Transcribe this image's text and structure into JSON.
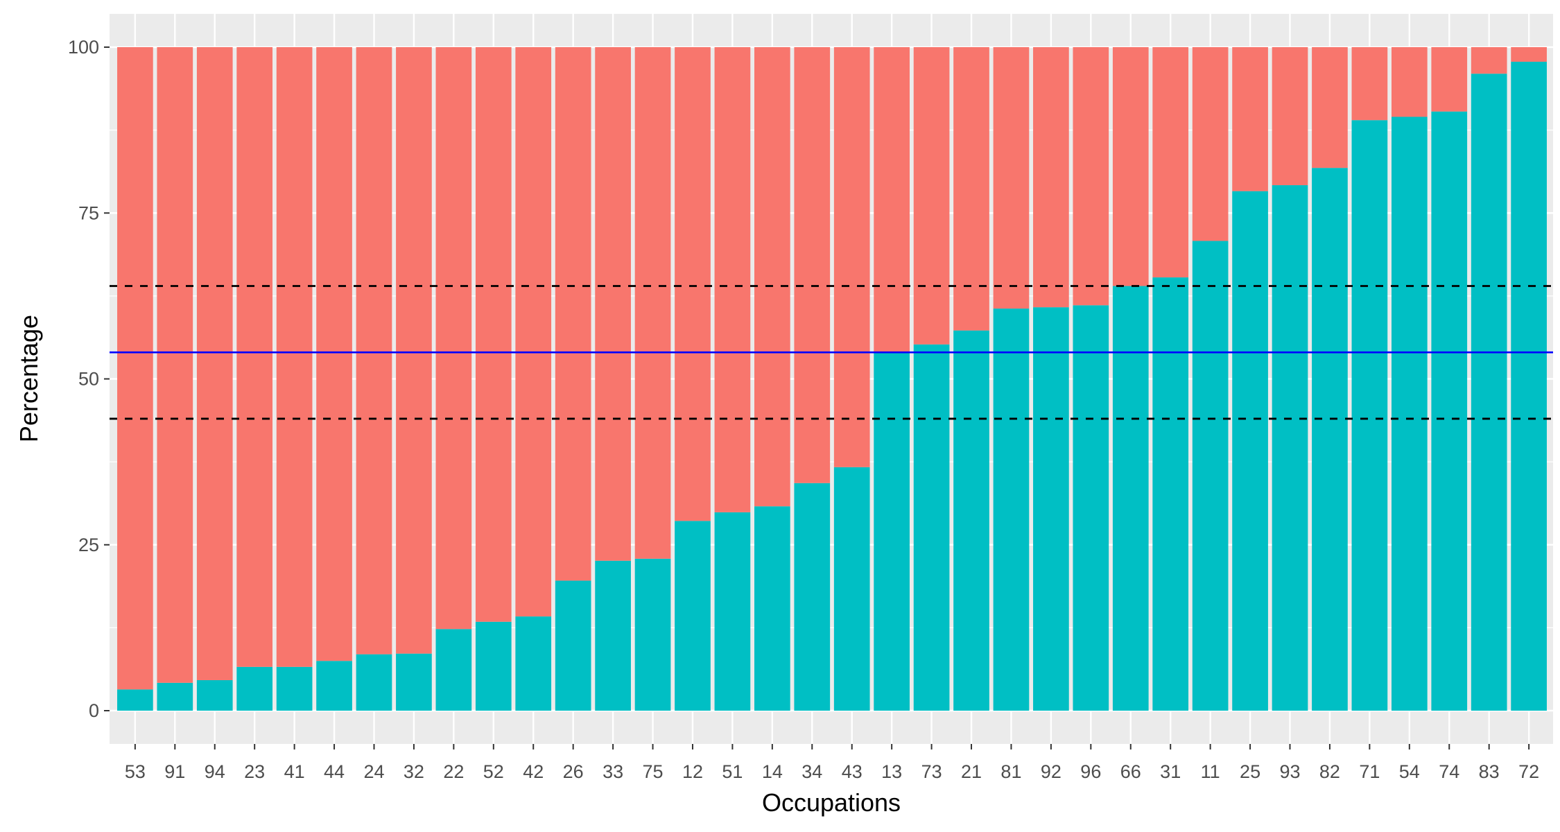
{
  "chart_data": {
    "type": "bar",
    "stacked": true,
    "xlabel": "Occupations",
    "ylabel": "Percentage",
    "ylim": [
      0,
      100
    ],
    "yticks": [
      0,
      25,
      50,
      75,
      100
    ],
    "grid": true,
    "legend": "none",
    "categories": [
      "53",
      "91",
      "94",
      "23",
      "41",
      "44",
      "24",
      "32",
      "22",
      "52",
      "42",
      "26",
      "33",
      "75",
      "12",
      "51",
      "14",
      "34",
      "43",
      "13",
      "73",
      "21",
      "81",
      "92",
      "96",
      "66",
      "31",
      "11",
      "25",
      "93",
      "82",
      "71",
      "54",
      "74",
      "83",
      "72"
    ],
    "series": [
      {
        "color": "#00BFC4",
        "values": [
          3.2,
          4.2,
          4.6,
          6.6,
          6.6,
          7.5,
          8.5,
          8.6,
          12.3,
          13.4,
          14.2,
          19.6,
          22.6,
          22.9,
          28.6,
          29.9,
          30.8,
          34.3,
          36.7,
          54.0,
          55.2,
          57.3,
          60.6,
          60.8,
          61.1,
          64.0,
          65.3,
          70.8,
          78.3,
          79.2,
          81.8,
          89.0,
          89.5,
          90.3,
          96.0,
          97.8
        ]
      },
      {
        "color": "#F8766D",
        "values": [
          96.8,
          95.8,
          95.4,
          93.4,
          93.4,
          92.5,
          91.5,
          91.4,
          87.7,
          86.6,
          85.8,
          80.4,
          77.4,
          77.1,
          71.4,
          70.1,
          69.2,
          65.7,
          63.3,
          46.0,
          44.8,
          42.7,
          39.4,
          39.2,
          38.9,
          36.0,
          34.7,
          29.2,
          21.7,
          20.8,
          18.2,
          11.0,
          10.5,
          9.7,
          4.0,
          2.2
        ]
      }
    ],
    "reference_lines": [
      {
        "y": 54,
        "style": "solid",
        "color": "#0000FF"
      },
      {
        "y": 64,
        "style": "dashed",
        "color": "#000000"
      },
      {
        "y": 44,
        "style": "dashed",
        "color": "#000000"
      }
    ],
    "panel_background": "#EBEBEB",
    "grid_color": "#FFFFFF"
  }
}
